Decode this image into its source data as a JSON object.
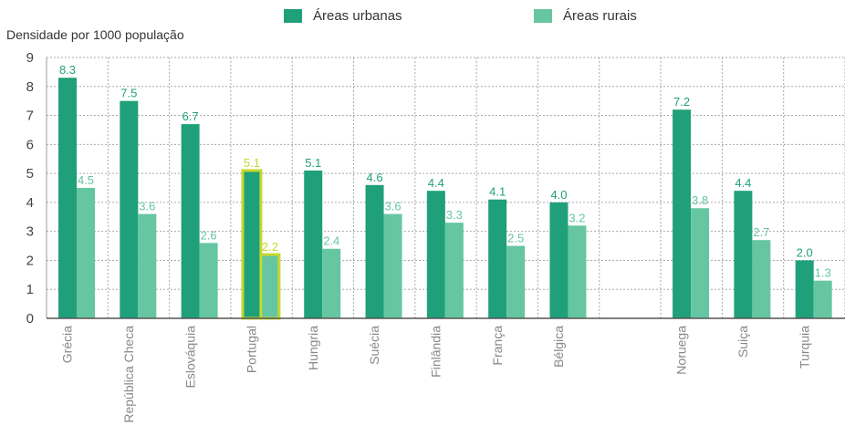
{
  "chart_data": {
    "type": "bar",
    "ylabel": "Densidade por 1000 população",
    "ylim": [
      0,
      9
    ],
    "yticks": [
      "0",
      "1",
      "2",
      "3",
      "4",
      "5",
      "6",
      "7",
      "8",
      "9"
    ],
    "grid": true,
    "legend_position": "top",
    "categories": [
      "Grécia",
      "República Checa",
      "Eslováquia",
      "Portugal",
      "Hungria",
      "Suécia",
      "Finlândia",
      "França",
      "Bélgica",
      "",
      "Noruega",
      "Suiça",
      "Turquia"
    ],
    "series": [
      {
        "name": "Áreas urbanas",
        "color": "#20a07a",
        "values": [
          8.3,
          7.5,
          6.7,
          5.1,
          5.1,
          4.6,
          4.4,
          4.1,
          4.0,
          null,
          7.2,
          4.4,
          2.0
        ],
        "labels": [
          "8.3",
          "7.5",
          "6.7",
          "5.1",
          "5.1",
          "4.6",
          "4.4",
          "4.1",
          "4.0",
          "",
          "7.2",
          "4.4",
          "2.0"
        ]
      },
      {
        "name": "Áreas rurais",
        "color": "#66c6a2",
        "values": [
          4.5,
          3.6,
          2.6,
          2.2,
          2.4,
          3.6,
          3.3,
          2.5,
          3.2,
          null,
          3.8,
          2.7,
          1.3
        ],
        "labels": [
          "4.5",
          "3.6",
          "2.6",
          "2.2",
          "2.4",
          "3.6",
          "3.3",
          "2.5",
          "3.2",
          "",
          "3.8",
          "2.7",
          "1.3"
        ]
      }
    ],
    "highlight_category": "Portugal",
    "highlight_color": "#c6d82f"
  }
}
